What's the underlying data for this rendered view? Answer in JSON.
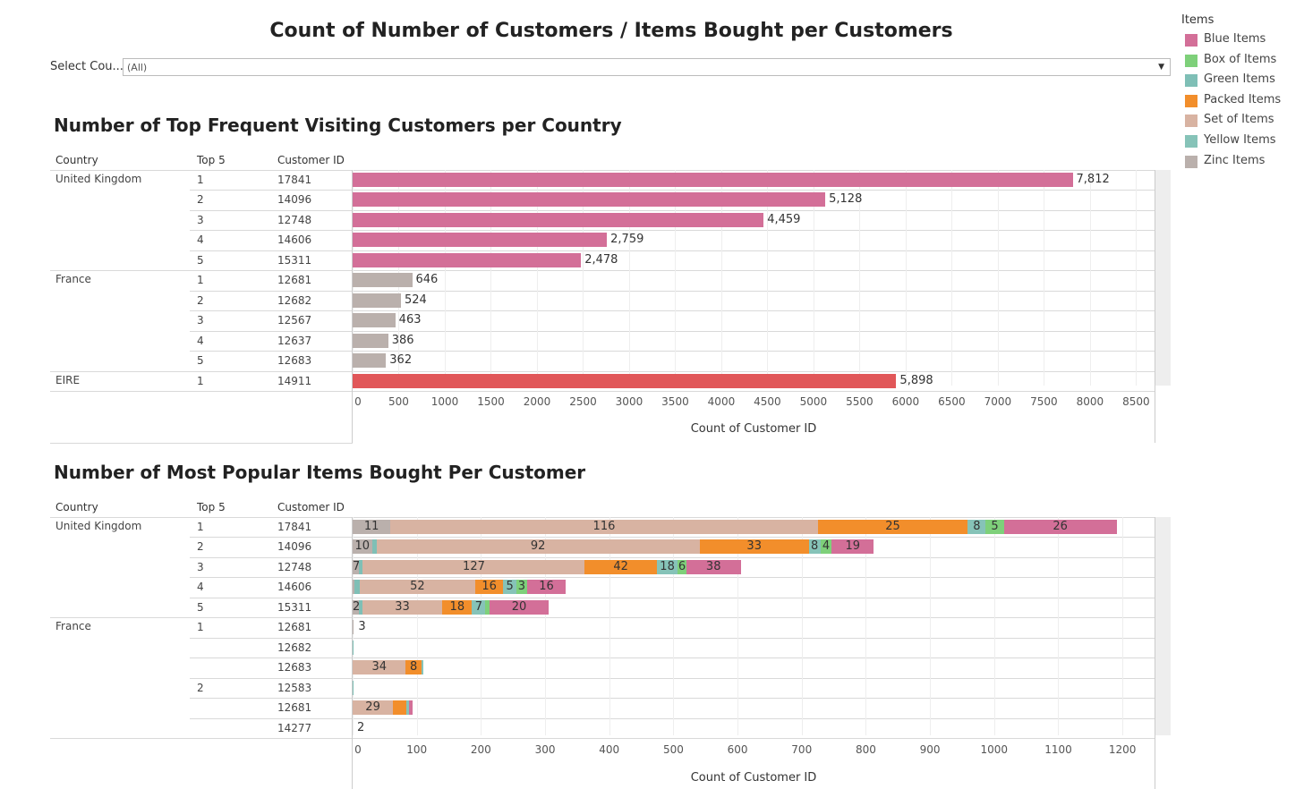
{
  "main_title": "Count of Number of Customers / Items Bought per Customers",
  "filter": {
    "label": "Select Cou...",
    "value": "(All)"
  },
  "legend": {
    "title": "Items",
    "items": [
      {
        "label": "Blue Items",
        "color": "#d36f98"
      },
      {
        "label": "Box of Items",
        "color": "#7ed07a"
      },
      {
        "label": "Green Items",
        "color": "#7fbfb6"
      },
      {
        "label": "Packed Items",
        "color": "#f28e2b"
      },
      {
        "label": "Set of Items",
        "color": "#d8b3a2"
      },
      {
        "label": "Yellow Items",
        "color": "#86c3b8"
      },
      {
        "label": "Zinc Items",
        "color": "#bab0ac"
      }
    ]
  },
  "headers": {
    "country": "Country",
    "top5": "Top 5",
    "customer_id": "Customer ID"
  },
  "chart_data": [
    {
      "type": "bar",
      "title": "Number of Top Frequent Visiting Customers per Country",
      "xlabel": "Count of Customer ID",
      "xlim": [
        0,
        8700
      ],
      "ticks": [
        "0",
        "500",
        "1000",
        "1500",
        "2000",
        "2500",
        "3000",
        "3500",
        "4000",
        "4500",
        "5000",
        "5500",
        "6000",
        "6500",
        "7000",
        "7500",
        "8000",
        "8500"
      ],
      "rows": [
        {
          "country": "United Kingdom",
          "rank": "1",
          "id": "17841",
          "value": 7812,
          "label": "7,812",
          "color": "#d36f98"
        },
        {
          "country": "",
          "rank": "2",
          "id": "14096",
          "value": 5128,
          "label": "5,128",
          "color": "#d36f98"
        },
        {
          "country": "",
          "rank": "3",
          "id": "12748",
          "value": 4459,
          "label": "4,459",
          "color": "#d36f98"
        },
        {
          "country": "",
          "rank": "4",
          "id": "14606",
          "value": 2759,
          "label": "2,759",
          "color": "#d36f98"
        },
        {
          "country": "",
          "rank": "5",
          "id": "15311",
          "value": 2478,
          "label": "2,478",
          "color": "#d36f98"
        },
        {
          "country": "France",
          "rank": "1",
          "id": "12681",
          "value": 646,
          "label": "646",
          "color": "#bab0ac"
        },
        {
          "country": "",
          "rank": "2",
          "id": "12682",
          "value": 524,
          "label": "524",
          "color": "#bab0ac"
        },
        {
          "country": "",
          "rank": "3",
          "id": "12567",
          "value": 463,
          "label": "463",
          "color": "#bab0ac"
        },
        {
          "country": "",
          "rank": "4",
          "id": "12637",
          "value": 386,
          "label": "386",
          "color": "#bab0ac"
        },
        {
          "country": "",
          "rank": "5",
          "id": "12683",
          "value": 362,
          "label": "362",
          "color": "#bab0ac"
        },
        {
          "country": "EIRE",
          "rank": "1",
          "id": "14911",
          "value": 5898,
          "label": "5,898",
          "color": "#e15759"
        }
      ]
    },
    {
      "type": "bar",
      "stacked": true,
      "title": "Number of Most Popular Items Bought Per Customer",
      "xlabel": "Count of Customer ID",
      "xlim": [
        0,
        1250
      ],
      "ticks": [
        "0",
        "100",
        "200",
        "300",
        "400",
        "500",
        "600",
        "700",
        "800",
        "900",
        "1000",
        "1100",
        "1200"
      ],
      "segment_order": [
        "Zinc Items",
        "Set of Items",
        "Green Items",
        "Packed Items",
        "Yellow Items",
        "Box of Items",
        "Blue Items"
      ],
      "rows": [
        {
          "country": "United Kingdom",
          "rank": "1",
          "id": "17841",
          "segments": [
            {
              "item": "Zinc Items",
              "value": 59,
              "label": "11"
            },
            {
              "item": "Set of Items",
              "value": 666,
              "label": "116"
            },
            {
              "item": "Packed Items",
              "value": 234,
              "label": "25"
            },
            {
              "item": "Yellow Items",
              "value": 28,
              "label": "8"
            },
            {
              "item": "Box of Items",
              "value": 28,
              "label": "5"
            },
            {
              "item": "Blue Items",
              "value": 176,
              "label": "26"
            }
          ]
        },
        {
          "country": "",
          "rank": "2",
          "id": "14096",
          "segments": [
            {
              "item": "Zinc Items",
              "value": 30,
              "label": "10"
            },
            {
              "item": "Green Items",
              "value": 7,
              "label": ""
            },
            {
              "item": "Set of Items",
              "value": 504,
              "label": "92"
            },
            {
              "item": "Packed Items",
              "value": 170,
              "label": "33"
            },
            {
              "item": "Yellow Items",
              "value": 18,
              "label": "8"
            },
            {
              "item": "Box of Items",
              "value": 18,
              "label": "4"
            },
            {
              "item": "Blue Items",
              "value": 65,
              "label": "19"
            }
          ]
        },
        {
          "country": "",
          "rank": "3",
          "id": "12748",
          "segments": [
            {
              "item": "Zinc Items",
              "value": 10,
              "label": "7"
            },
            {
              "item": "Green Items",
              "value": 6,
              "label": ""
            },
            {
              "item": "Set of Items",
              "value": 346,
              "label": "127"
            },
            {
              "item": "Packed Items",
              "value": 112,
              "label": "42"
            },
            {
              "item": "Yellow Items",
              "value": 33,
              "label": "18"
            },
            {
              "item": "Box of Items",
              "value": 13,
              "label": "6"
            },
            {
              "item": "Blue Items",
              "value": 85,
              "label": "38"
            }
          ]
        },
        {
          "country": "",
          "rank": "4",
          "id": "14606",
          "segments": [
            {
              "item": "Zinc Items",
              "value": 3,
              "label": ""
            },
            {
              "item": "Green Items",
              "value": 8,
              "label": ""
            },
            {
              "item": "Set of Items",
              "value": 180,
              "label": "52"
            },
            {
              "item": "Packed Items",
              "value": 44,
              "label": "16"
            },
            {
              "item": "Yellow Items",
              "value": 20,
              "label": "5"
            },
            {
              "item": "Box of Items",
              "value": 17,
              "label": "3"
            },
            {
              "item": "Blue Items",
              "value": 60,
              "label": "16"
            }
          ]
        },
        {
          "country": "",
          "rank": "5",
          "id": "15311",
          "segments": [
            {
              "item": "Zinc Items",
              "value": 10,
              "label": "2"
            },
            {
              "item": "Green Items",
              "value": 5,
              "label": ""
            },
            {
              "item": "Set of Items",
              "value": 125,
              "label": "33"
            },
            {
              "item": "Packed Items",
              "value": 46,
              "label": "18"
            },
            {
              "item": "Yellow Items",
              "value": 21,
              "label": "7"
            },
            {
              "item": "Box of Items",
              "value": 6,
              "label": ""
            },
            {
              "item": "Blue Items",
              "value": 93,
              "label": "20"
            }
          ]
        },
        {
          "country": "France",
          "rank": "1",
          "id": "12681",
          "segments": [
            {
              "item": "Zinc Items",
              "value": 2,
              "label": ""
            }
          ],
          "end_label": "3"
        },
        {
          "country": "",
          "rank": "",
          "id": "12682",
          "segments": [
            {
              "item": "Green Items",
              "value": 1,
              "label": ""
            }
          ]
        },
        {
          "country": "",
          "rank": "",
          "id": "12683",
          "segments": [
            {
              "item": "Set of Items",
              "value": 83,
              "label": "34"
            },
            {
              "item": "Packed Items",
              "value": 24,
              "label": "8"
            },
            {
              "item": "Yellow Items",
              "value": 3,
              "label": ""
            }
          ]
        },
        {
          "country": "",
          "rank": "2",
          "id": "12583",
          "segments": [
            {
              "item": "Green Items",
              "value": 1,
              "label": ""
            }
          ]
        },
        {
          "country": "",
          "rank": "",
          "id": "12681",
          "segments": [
            {
              "item": "Set of Items",
              "value": 63,
              "label": "29"
            },
            {
              "item": "Packed Items",
              "value": 21,
              "label": ""
            },
            {
              "item": "Yellow Items",
              "value": 4,
              "label": ""
            },
            {
              "item": "Blue Items",
              "value": 6,
              "label": ""
            }
          ]
        },
        {
          "country": "",
          "rank": "",
          "id": "14277",
          "segments": [],
          "end_label": "2"
        }
      ]
    }
  ]
}
